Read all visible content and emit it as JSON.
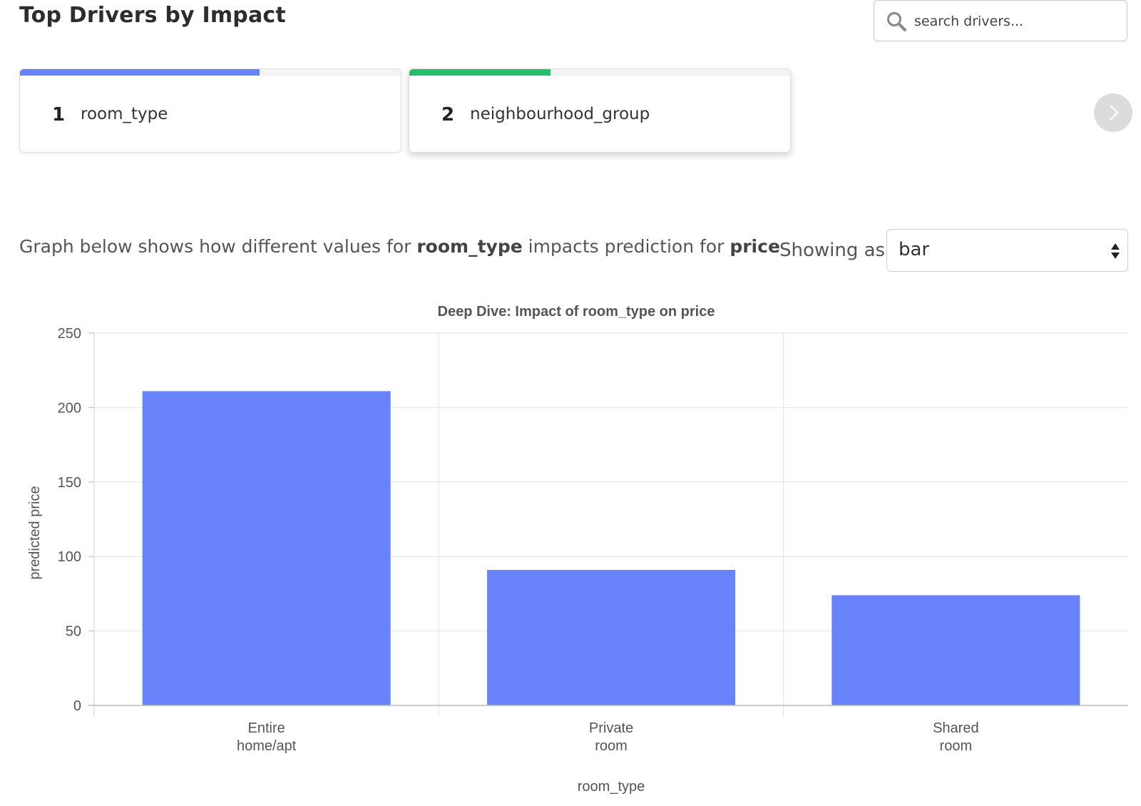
{
  "header": {
    "title": "Top Drivers by Impact",
    "search_placeholder": "search drivers..."
  },
  "drivers": [
    {
      "rank": "1",
      "name": "room_type",
      "impact": 0.63,
      "color": "#6882fa"
    },
    {
      "rank": "2",
      "name": "neighbourhood_group",
      "impact": 0.37,
      "color": "#22bf6e"
    }
  ],
  "description": {
    "prefix": "Graph below shows how different values for ",
    "feature": "room_type",
    "middle": " impacts prediction for ",
    "target": "price"
  },
  "view_selector": {
    "label": "Showing as:",
    "selected": "bar"
  },
  "icons": {
    "search": "search-icon",
    "next": "chevron-right-icon",
    "select": "sort-arrows-icon"
  },
  "chart_data": {
    "type": "bar",
    "title": "Deep Dive: Impact of room_type on price",
    "xlabel": "room_type",
    "ylabel": "predicted price",
    "categories": [
      "Entire\nhome/apt",
      "Private\nroom",
      "Shared\nroom"
    ],
    "values": [
      211,
      91,
      74
    ],
    "ylim": [
      0,
      250
    ],
    "yticks": [
      0,
      50,
      100,
      150,
      200,
      250
    ],
    "grid": true,
    "bar_color": "#6882fa"
  }
}
